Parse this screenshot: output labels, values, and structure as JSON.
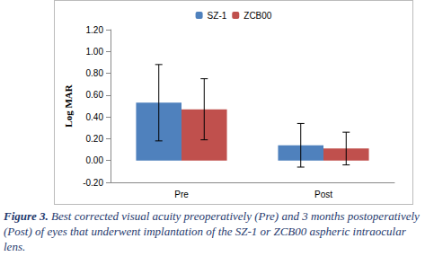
{
  "chart_data": {
    "type": "bar",
    "categories": [
      "Pre",
      "Post"
    ],
    "series": [
      {
        "name": "SZ-1",
        "color": "#4f81bd",
        "values": [
          0.53,
          0.14
        ],
        "errors": [
          0.35,
          0.2
        ]
      },
      {
        "name": "ZCB00",
        "color": "#c0504d",
        "values": [
          0.47,
          0.11
        ],
        "errors": [
          0.28,
          0.15
        ]
      }
    ],
    "y_label": "Log MAR",
    "ylim": [
      -0.2,
      1.2
    ],
    "yticks": [
      {
        "value": -0.2,
        "label": "-0.20"
      },
      {
        "value": 0,
        "label": "0.00"
      },
      {
        "value": 0.2,
        "label": "0.20"
      },
      {
        "value": 0.4,
        "label": "0.40"
      },
      {
        "value": 0.6,
        "label": "0.60"
      },
      {
        "value": 0.8,
        "label": "0.80"
      },
      {
        "value": 1.0,
        "label": "1.00"
      },
      {
        "value": 1.2,
        "label": "1.20"
      }
    ],
    "grid": false,
    "legend": "top",
    "caption": {
      "label": "Figure 3.",
      "text": "Best corrected visual acuity preoperatively (Pre) and 3 months postoperatively (Post) of eyes that underwent implantation of the SZ-1 or ZCB00 aspheric intraocular lens."
    }
  }
}
